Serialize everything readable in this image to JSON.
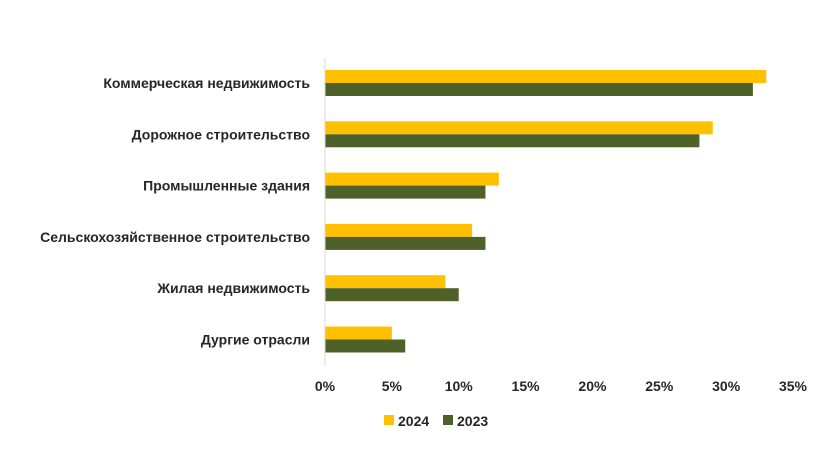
{
  "chart_data": {
    "type": "bar",
    "orientation": "horizontal",
    "categories": [
      "Коммерческая недвижимость",
      "Дорожное строительство",
      "Промышленные здания",
      "Сельскохозяйственное строительство",
      "Жилая недвижимость",
      "Дургие отрасли"
    ],
    "series": [
      {
        "name": "2024",
        "color": "#FFC000",
        "values": [
          33,
          29,
          13,
          11,
          9,
          5
        ]
      },
      {
        "name": "2023",
        "color": "#4E6128",
        "values": [
          32,
          28,
          12,
          12,
          10,
          6
        ]
      }
    ],
    "xlim": [
      0,
      35
    ],
    "xticks": [
      "0%",
      "5%",
      "10%",
      "15%",
      "20%",
      "25%",
      "30%",
      "35%"
    ],
    "grid": false,
    "legend_position": "bottom"
  }
}
